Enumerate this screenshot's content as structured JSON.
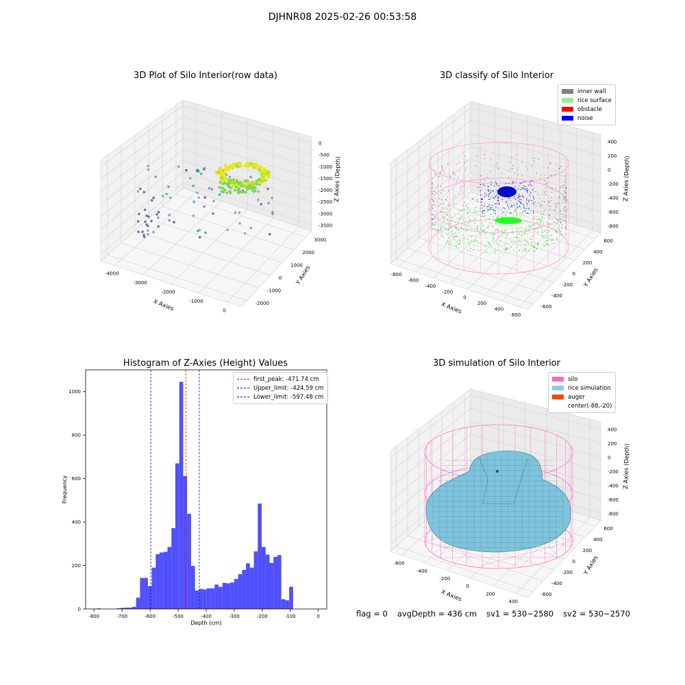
{
  "figure": {
    "suptitle": "DJHNR08 2025-02-26 00:53:58",
    "footer": {
      "flag": "flag = 0",
      "avg_depth": "avgDepth = 436 cm",
      "sv1": "sv1 = 530~2580",
      "sv2": "sv2 = 530~2570"
    }
  },
  "colors": {
    "hist_bar": "#5050ff",
    "first_peak_line": "#ff0000",
    "limit_line": "#0000ff",
    "inner_wall": "#808080",
    "rice_surface": "#90ee90",
    "obstacle": "#ff0000",
    "noise": "#0000ff",
    "silo": "#ff69b4",
    "rice_simulation": "#87ceeb",
    "auger": "#ff4500"
  },
  "chart_data": [
    {
      "type": "scatter",
      "title": "3D Plot of Silo Interior(row data)",
      "xlabel": "X Axies",
      "ylabel": "Y Axies",
      "zlabel": "Z Axies (Depth)",
      "x_ticks": [
        "-4000",
        "-3000",
        "-2000",
        "-1000",
        "0"
      ],
      "y_ticks": [
        "-2000",
        "-1000",
        "0",
        "1000",
        "2000",
        "3000"
      ],
      "z_ticks": [
        "0",
        "-500",
        "-1000",
        "-1500",
        "-2000",
        "-2500",
        "-3000",
        "-3500"
      ]
    },
    {
      "type": "scatter",
      "title": "3D classify of Silo Interior",
      "xlabel": "X Axies",
      "ylabel": "Y Axies",
      "zlabel": "Z Axies (Depth)",
      "x_ticks": [
        "-800",
        "-600",
        "-400",
        "-200",
        "0",
        "200",
        "400",
        "600"
      ],
      "y_ticks": [
        "-600",
        "-400",
        "-200",
        "0",
        "200",
        "400",
        "600"
      ],
      "z_ticks": [
        "400",
        "200",
        "0",
        "-200",
        "-400",
        "-600",
        "-800"
      ],
      "legend": [
        "inner wall",
        "rice surface",
        "obstacle",
        "noise"
      ],
      "legend_position": "top-right"
    },
    {
      "type": "bar",
      "title": "Histogram of Z-Axies (Height) Values",
      "xlabel": "Depth (cm)",
      "ylabel": "Frequency",
      "xlim": [
        -830,
        30
      ],
      "ylim": [
        0,
        1100
      ],
      "x_ticks": [
        -800,
        -700,
        -600,
        -500,
        -400,
        -300,
        -200,
        -100,
        0
      ],
      "y_ticks": [
        0,
        200,
        400,
        600,
        800,
        1000
      ],
      "bin_width": 14,
      "bin_start": -790,
      "values": [
        3,
        0,
        0,
        0,
        0,
        3,
        5,
        6,
        6,
        10,
        52,
        143,
        143,
        105,
        190,
        252,
        260,
        263,
        285,
        372,
        670,
        1045,
        612,
        438,
        198,
        85,
        92,
        90,
        95,
        95,
        112,
        102,
        120,
        118,
        122,
        138,
        160,
        180,
        210,
        190,
        265,
        485,
        285,
        250,
        212,
        240,
        248,
        45,
        40,
        102
      ],
      "lines": [
        {
          "label": "first_peak: -471.74 cm",
          "x": -471.74,
          "color_key": "first_peak_line"
        },
        {
          "label": "Upper_limit: -424.59 cm",
          "x": -424.59,
          "color_key": "limit_line"
        },
        {
          "label": "Lower_limit: -597.48 cm",
          "x": -597.48,
          "color_key": "limit_line"
        }
      ],
      "legend_position": "top-right"
    },
    {
      "type": "area",
      "title": "3D simulation of Silo Interior",
      "xlabel": "X Axies",
      "ylabel": "Y Axies",
      "zlabel": "Z Axies (Depth)",
      "x_ticks": [
        "-600",
        "-400",
        "-200",
        "0",
        "200",
        "400"
      ],
      "y_ticks": [
        "-600",
        "-400",
        "-200",
        "0",
        "200",
        "400",
        "600"
      ],
      "z_ticks": [
        "400",
        "200",
        "0",
        "-200",
        "-400",
        "-600",
        "-800"
      ],
      "legend": [
        "silo",
        "rice simulation",
        "auger",
        "center(-88,-20)"
      ],
      "legend_position": "top-right"
    }
  ]
}
